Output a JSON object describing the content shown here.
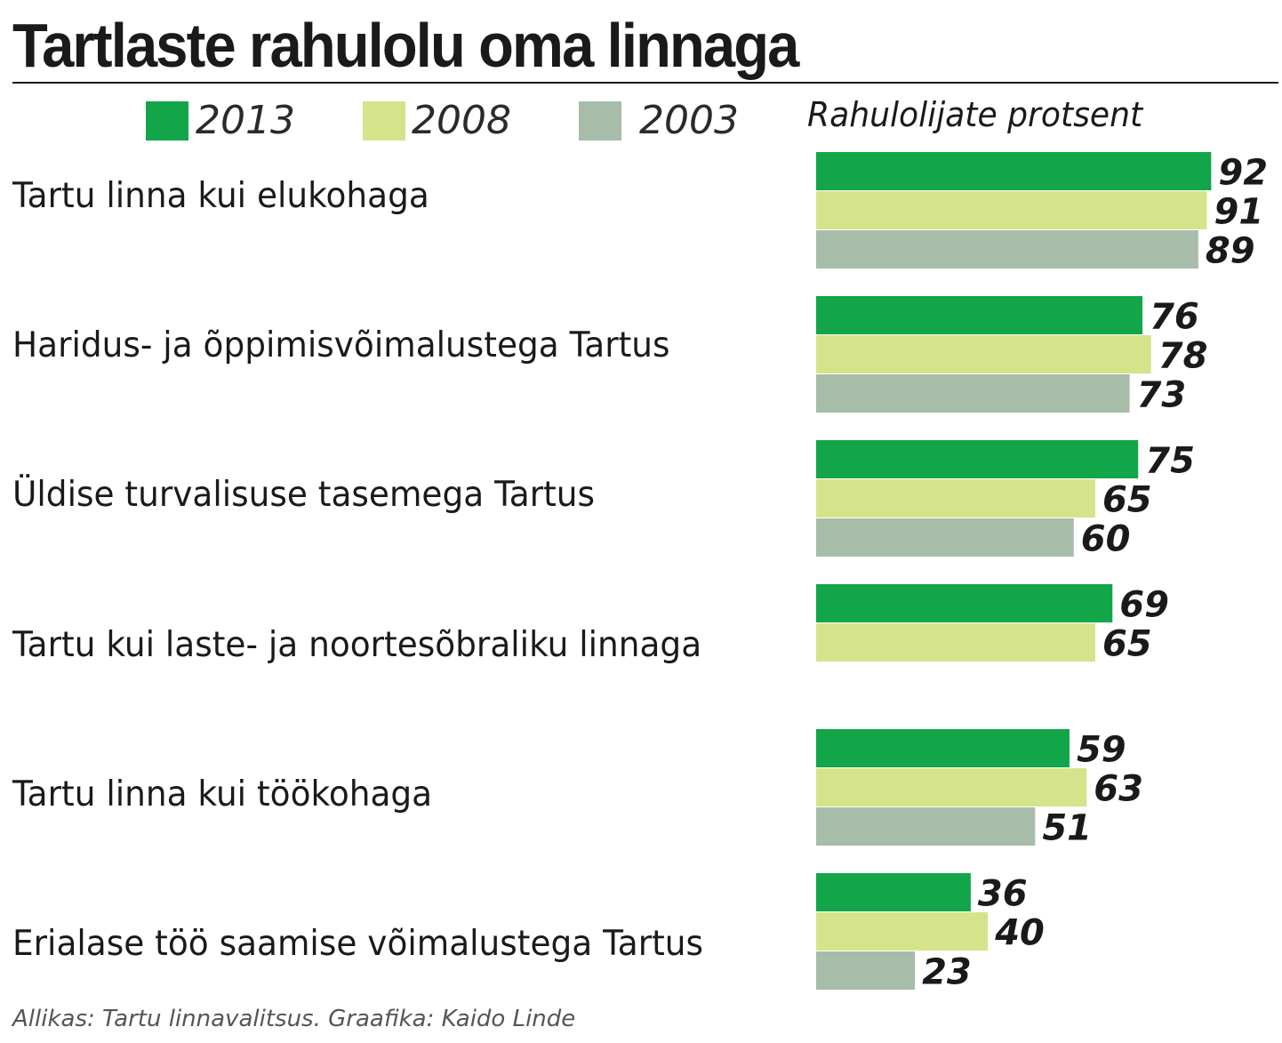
{
  "chart_data": {
    "type": "bar",
    "orientation": "horizontal",
    "title": "Tartlaste rahulolu oma linnaga",
    "ylabel": "Rahulolijate protsent",
    "categories": [
      "Tartu linna kui elukohaga",
      "Haridus- ja õppimisvõimalustega Tartus",
      "Üldise turvalisuse tasemega Tartus",
      "Tartu kui laste- ja noortesõbraliku linnaga",
      "Tartu linna kui töökohaga",
      "Erialase töö saamise võimalustega Tartus"
    ],
    "series": [
      {
        "name": "2013",
        "color": "#12a54a",
        "values": [
          92,
          76,
          75,
          69,
          59,
          36
        ]
      },
      {
        "name": "2008",
        "color": "#d5e48a",
        "values": [
          91,
          78,
          65,
          65,
          63,
          40
        ]
      },
      {
        "name": "2003",
        "color": "#a8bcaa",
        "values": [
          89,
          73,
          60,
          null,
          51,
          23
        ]
      }
    ],
    "xlim": [
      0,
      100
    ],
    "grid": false,
    "legend": "top"
  },
  "source": "Allikas: Tartu linnavalitsus. Graafika: Kaido Linde"
}
